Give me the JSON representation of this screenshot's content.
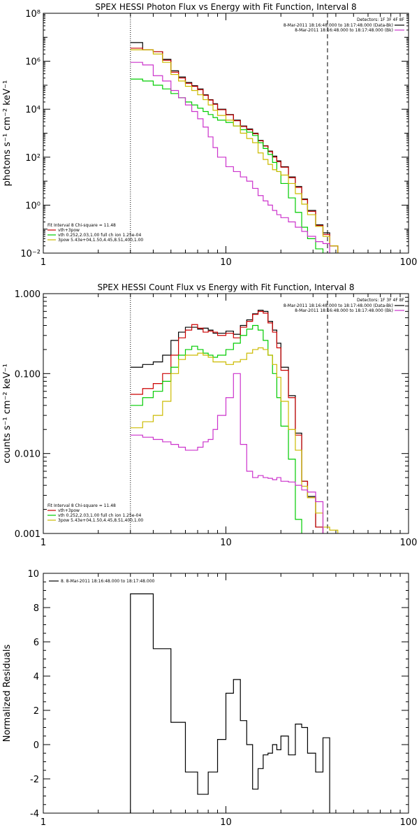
{
  "chart_data": [
    {
      "type": "line",
      "title": "SPEX HESSI Photon Flux vs Energy with Fit Function, Interval 8",
      "ylabel": "photons s⁻¹ cm⁻² keV⁻¹",
      "xlabel": "",
      "x_scale": "log",
      "y_scale": "log",
      "xlim": [
        1,
        100
      ],
      "ylim": [
        0.01,
        100000000
      ],
      "x_tick_labels": [
        "1",
        "10",
        "100"
      ],
      "y_tick_labels": [
        "10⁻²",
        "10⁰",
        "10²",
        "10⁴",
        "10⁶",
        "10⁸"
      ],
      "vlines": [
        {
          "x": 3.0,
          "style": "dotted"
        },
        {
          "x": 36.0,
          "style": "dashed"
        }
      ],
      "legend_top": {
        "placement": "top-right",
        "header": "Detectors: 1F 3F 4F 8F",
        "entries": [
          {
            "text": "8-Mar-2011 18:16:48.000 to 18:17:48.000 (Data-Bk)",
            "color": "#000000"
          },
          {
            "text": "8-Mar-2011 18:16:48.000 to 18:17:48.000 (Bk)",
            "color": "#cc33cc"
          }
        ]
      },
      "legend_bottom": {
        "placement": "bottom-left",
        "header": "Fit Interval 8   Chi-square = 11.48",
        "entries": [
          {
            "text": "vth+3pow",
            "color": "#cc0000"
          },
          {
            "text": "vth 0.252,2.03,1.00  full ch ion 1.25e-04",
            "color": "#00cc00"
          },
          {
            "text": "3pow 5.43e+04,1.50,4.45,8.51,400,1.00",
            "color": "#ccbb00"
          }
        ]
      },
      "bin_edges": [
        3.0,
        3.5,
        4.0,
        4.5,
        5.0,
        5.5,
        6.0,
        6.5,
        7.0,
        7.5,
        8.0,
        8.5,
        9.0,
        10.0,
        11.0,
        12.0,
        13.0,
        14.0,
        15.0,
        16.0,
        17.0,
        18.0,
        19.0,
        20.0,
        22.0,
        24.0,
        26.0,
        28.0,
        31.0,
        34.0,
        37.0,
        41.0
      ],
      "series": [
        {
          "color": "#000000",
          "values": [
            6000000,
            3000000,
            2500000,
            1200000,
            400000,
            220000,
            130000,
            95000,
            70000,
            40000,
            25000,
            17000,
            10000,
            6000,
            3500,
            2000,
            1500,
            1000,
            500,
            300,
            180,
            110,
            70,
            40,
            15,
            6,
            1.8,
            0.6,
            0.15,
            0.07,
            0.02
          ]
        },
        {
          "color": "#cc0000",
          "values": [
            3500000,
            3000000,
            2500000,
            1100000,
            350000,
            200000,
            120000,
            90000,
            65000,
            38000,
            24000,
            16000,
            9500,
            5800,
            3300,
            1900,
            1400,
            950,
            480,
            290,
            170,
            100,
            65,
            38,
            14,
            5.5,
            1.7,
            0.55,
            0.14,
            0.06,
            0.02
          ]
        },
        {
          "color": "#00cc00",
          "values": [
            180000,
            150000,
            100000,
            70000,
            45000,
            30000,
            20000,
            15000,
            11000,
            8000,
            6000,
            4500,
            3500,
            2800,
            2000,
            1400,
            1100,
            800,
            400,
            230,
            130,
            60,
            25,
            8,
            2,
            0.5,
            0.12,
            0.04,
            0.015,
            null,
            null
          ]
        },
        {
          "color": "#ccbb00",
          "values": [
            3000000,
            3000000,
            2000000,
            900000,
            280000,
            150000,
            90000,
            60000,
            40000,
            25000,
            15000,
            9000,
            5500,
            3500,
            2000,
            1000,
            600,
            400,
            150,
            80,
            50,
            30,
            25,
            18,
            8,
            3,
            1.1,
            0.4,
            0.13,
            0.05,
            0.02
          ]
        },
        {
          "color": "#cc33cc",
          "values": [
            900000,
            700000,
            250000,
            150000,
            60000,
            30000,
            15000,
            8000,
            4000,
            1800,
            700,
            250,
            100,
            40,
            25,
            15,
            10,
            5,
            2.5,
            1.5,
            1.0,
            0.6,
            0.4,
            0.3,
            0.2,
            0.12,
            0.08,
            0.05,
            0.03,
            0.025,
            null
          ]
        }
      ]
    },
    {
      "type": "line",
      "title": "SPEX HESSI Count Flux vs Energy with Fit Function, Interval 8",
      "ylabel": "counts s⁻¹ cm⁻² keV⁻¹",
      "xlabel": "",
      "x_scale": "log",
      "y_scale": "log",
      "xlim": [
        1,
        100
      ],
      "ylim": [
        0.001,
        1.0
      ],
      "x_tick_labels": [
        "1",
        "10",
        "100"
      ],
      "y_tick_labels": [
        "0.001",
        "0.010",
        "0.100",
        "1.000"
      ],
      "vlines": [
        {
          "x": 3.0,
          "style": "dotted"
        },
        {
          "x": 36.0,
          "style": "dashed"
        }
      ],
      "legend_top": {
        "placement": "top-right",
        "header": "Detectors: 1F 3F 4F 8F",
        "entries": [
          {
            "text": "8-Mar-2011 18:16:48.000 to 18:17:48.000 (Data-Bk)",
            "color": "#000000"
          },
          {
            "text": "8-Mar-2011 18:16:48.000 to 18:17:48.000 (Bk)",
            "color": "#cc33cc"
          }
        ]
      },
      "legend_bottom": {
        "placement": "bottom-left",
        "header": "Fit Interval 8   Chi-square = 11.48",
        "entries": [
          {
            "text": "vth+3pow",
            "color": "#cc0000"
          },
          {
            "text": "vth 0.252,2.03,1.00  full ch ion 1.25e-04",
            "color": "#00cc00"
          },
          {
            "text": "3pow 5.43e+04,1.50,4.45,8.51,400,1.00",
            "color": "#ccbb00"
          }
        ]
      },
      "bin_edges": [
        3.0,
        3.5,
        4.0,
        4.5,
        5.0,
        5.5,
        6.0,
        6.5,
        7.0,
        7.5,
        8.0,
        8.5,
        9.0,
        10.0,
        11.0,
        12.0,
        13.0,
        14.0,
        15.0,
        16.0,
        17.0,
        18.0,
        19.0,
        20.0,
        22.0,
        24.0,
        26.0,
        28.0,
        31.0,
        34.0,
        37.0,
        41.0,
        46.0
      ],
      "series": [
        {
          "color": "#000000",
          "values": [
            0.12,
            0.13,
            0.14,
            0.17,
            0.26,
            0.33,
            0.38,
            0.38,
            0.36,
            0.37,
            0.35,
            0.32,
            0.32,
            0.34,
            0.31,
            0.4,
            0.47,
            0.56,
            0.62,
            0.6,
            0.45,
            0.35,
            0.24,
            0.12,
            0.053,
            0.018,
            0.0045,
            0.0029,
            0.0012,
            null,
            null,
            null
          ]
        },
        {
          "color": "#cc0000",
          "values": [
            0.055,
            0.065,
            0.075,
            0.1,
            0.17,
            0.28,
            0.35,
            0.41,
            0.37,
            0.33,
            0.34,
            0.33,
            0.3,
            0.32,
            0.28,
            0.38,
            0.45,
            0.55,
            0.6,
            0.57,
            0.43,
            0.33,
            0.21,
            0.11,
            0.05,
            0.017,
            0.0045,
            0.0028,
            0.0012,
            null,
            null,
            null
          ]
        },
        {
          "color": "#00cc00",
          "values": [
            0.04,
            0.05,
            0.06,
            0.08,
            0.12,
            0.17,
            0.2,
            0.22,
            0.2,
            0.18,
            0.17,
            0.16,
            0.17,
            0.2,
            0.24,
            0.3,
            0.36,
            0.4,
            0.35,
            0.26,
            0.17,
            0.1,
            0.05,
            0.022,
            0.0085,
            0.0015,
            0.0009,
            null,
            null,
            null,
            null,
            null
          ]
        },
        {
          "color": "#ccbb00",
          "values": [
            0.021,
            0.025,
            0.03,
            0.045,
            0.1,
            0.15,
            0.17,
            0.17,
            0.18,
            0.17,
            0.16,
            0.14,
            0.14,
            0.13,
            0.14,
            0.15,
            0.18,
            0.2,
            0.21,
            0.2,
            0.17,
            0.13,
            0.09,
            0.045,
            0.02,
            0.011,
            0.0039,
            0.0028,
            0.0018,
            0.0012,
            0.0011,
            null
          ]
        },
        {
          "color": "#cc33cc",
          "values": [
            0.017,
            0.016,
            0.015,
            0.014,
            0.013,
            0.012,
            0.011,
            0.011,
            0.012,
            0.014,
            0.015,
            0.02,
            0.03,
            0.05,
            0.1,
            0.013,
            0.006,
            0.005,
            0.0053,
            0.005,
            0.0049,
            0.0047,
            0.005,
            0.0045,
            0.0044,
            0.004,
            0.0035,
            0.0033,
            0.0025,
            null,
            null,
            null
          ]
        }
      ]
    },
    {
      "type": "line",
      "title": "",
      "ylabel": "Normalized Residuals",
      "xlabel": "",
      "x_scale": "log",
      "y_scale": "linear",
      "xlim": [
        1,
        100
      ],
      "ylim": [
        -4,
        10
      ],
      "x_tick_labels": [
        "1",
        "10",
        "100"
      ],
      "y_tick_labels": [
        "-4",
        "-2",
        "0",
        "2",
        "4",
        "6",
        "8",
        "10"
      ],
      "legend": {
        "placement": "top-left",
        "entries": [
          {
            "text": "8.  8-Mar-2011 18:16:48.000 to 18:17:48.000",
            "color": "#000000"
          }
        ]
      },
      "bin_edges": [
        3.0,
        4.0,
        5.0,
        6.0,
        7.0,
        8.0,
        9.0,
        10.0,
        11.0,
        12.0,
        13.0,
        14.0,
        15.0,
        16.0,
        17.0,
        18.0,
        19.0,
        20.0,
        22.0,
        24.0,
        26.0,
        28.0,
        31.0,
        34.0,
        37.0
      ],
      "series": [
        {
          "color": "#000000",
          "values": [
            8.8,
            5.6,
            1.3,
            -1.6,
            -2.9,
            -1.6,
            0.3,
            3.0,
            3.8,
            1.4,
            0.0,
            -2.6,
            -1.4,
            -0.6,
            -0.5,
            0.0,
            -0.3,
            0.5,
            -0.6,
            1.2,
            1.0,
            -0.5,
            -1.6,
            0.4
          ]
        }
      ]
    }
  ]
}
